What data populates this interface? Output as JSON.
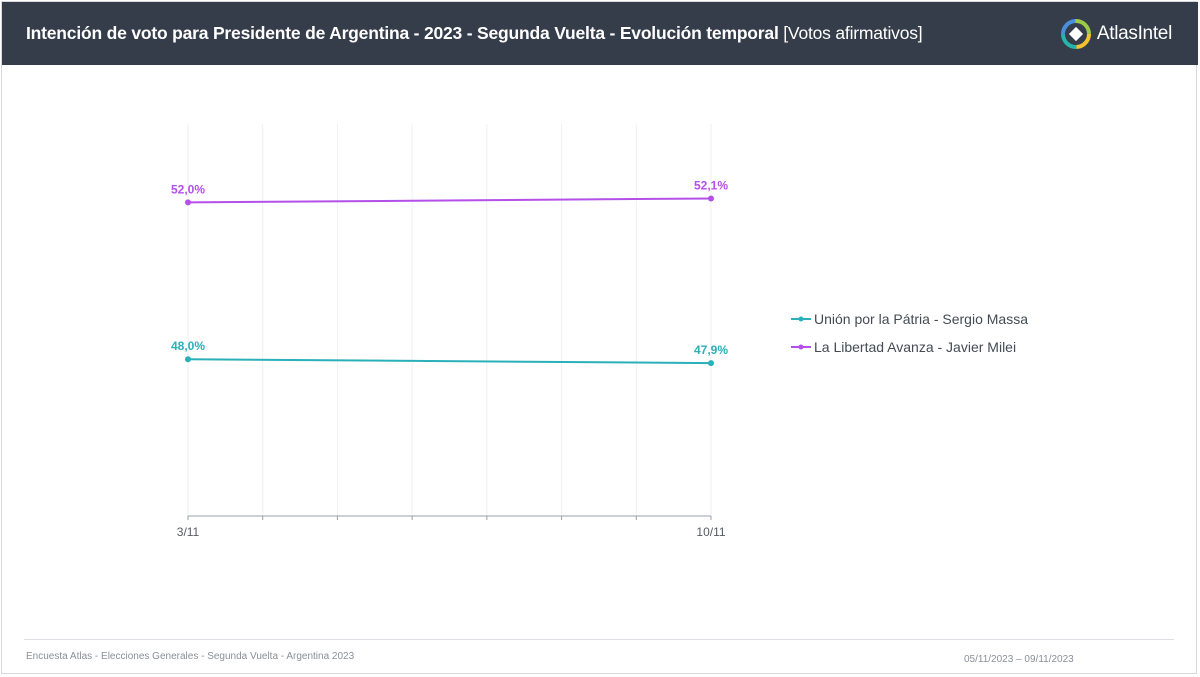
{
  "header": {
    "title": "Intención de voto para Presidente de Argentina - 2023 - Segunda Vuelta  - Evolución temporal",
    "subtitle": " [Votos afirmativos]",
    "brand_name": "AtlasIntel",
    "brand_icon": "atlasintel-logo-icon"
  },
  "chart_data": {
    "type": "line",
    "title": "Intención de voto para Presidente de Argentina - 2023 - Segunda Vuelta  - Evolución temporal",
    "subtitle": "[Votos afirmativos]",
    "x": [
      "3/11",
      "10/11"
    ],
    "ylim": [
      44,
      54
    ],
    "grid": "vertical",
    "legend_position": "right",
    "series": [
      {
        "name": "Unión por la Pátria - Sergio Massa",
        "values": [
          48.0,
          47.9
        ],
        "labels": [
          "48,0%",
          "47,9%"
        ],
        "color": "#2ab0b9"
      },
      {
        "name": "La Libertad Avanza - Javier Milei",
        "values": [
          52.0,
          52.1
        ],
        "labels": [
          "52,0%",
          "52,1%"
        ],
        "color": "#b44fe8"
      }
    ]
  },
  "footer": {
    "source": "Encuesta Atlas - Elecciones Generales - Segunda Vuelta - Argentina 2023",
    "date_range": "05/11/2023 – 09/11/2023"
  }
}
